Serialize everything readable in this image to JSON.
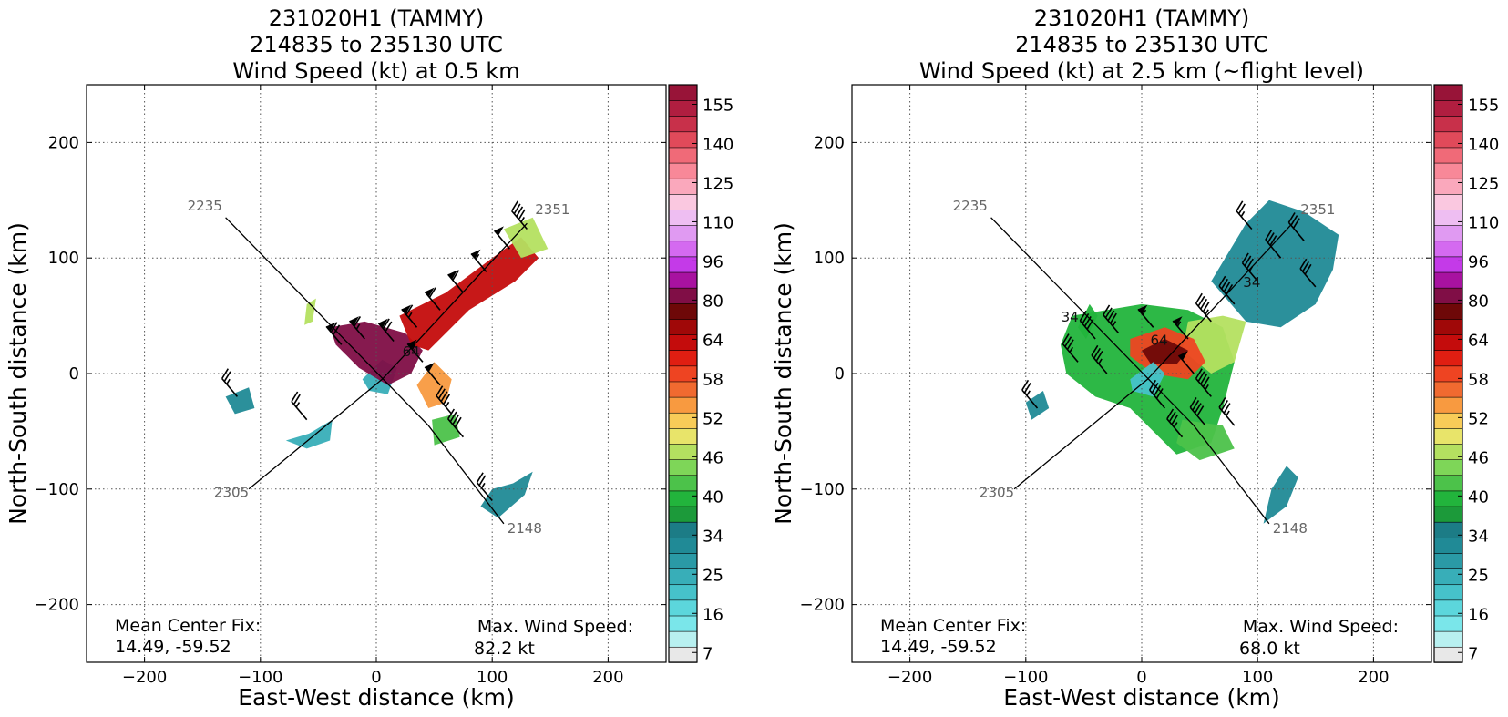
{
  "colorbar": {
    "colors": [
      "#e8e8e8",
      "#b8f0f0",
      "#7ae6ea",
      "#5cd6dc",
      "#46c2ca",
      "#38aeb8",
      "#2a9aa6",
      "#208a96",
      "#1c7c86",
      "#1c9a3a",
      "#22b43c",
      "#4cc24a",
      "#7ed658",
      "#b4e060",
      "#e8e46a",
      "#f8cc58",
      "#f89a40",
      "#f06a30",
      "#ee4422",
      "#e01e12",
      "#c40c0c",
      "#a00808",
      "#6e0808",
      "#800e46",
      "#a812a0",
      "#c43ae8",
      "#d46af0",
      "#e09af2",
      "#eebef2",
      "#fac8e0",
      "#faa8bc",
      "#f88898",
      "#f06a78",
      "#e04a5a",
      "#c8304a",
      "#b01e40",
      "#981438"
    ],
    "tick_labels": [
      "7",
      "16",
      "25",
      "34",
      "40",
      "46",
      "52",
      "58",
      "64",
      "80",
      "96",
      "110",
      "125",
      "140",
      "155"
    ]
  },
  "panels": [
    {
      "title_lines": [
        "231020H1 (TAMMY)",
        "214835 to 235130 UTC",
        "Wind Speed (kt) at 0.5 km"
      ],
      "xlabel": "East-West distance (km)",
      "ylabel": "North-South distance (km)",
      "mean_center_label": "Mean Center Fix:",
      "mean_center_value": "14.49, -59.52",
      "max_wind_label": "Max. Wind Speed:",
      "max_wind_value": "82.2 kt",
      "contour_labels": [
        "64"
      ]
    },
    {
      "title_lines": [
        "231020H1 (TAMMY)",
        "214835 to 235130 UTC",
        "Wind Speed (kt) at 2.5 km (~flight level)"
      ],
      "xlabel": "East-West distance (km)",
      "ylabel": "North-South distance (km)",
      "mean_center_label": "Mean Center Fix:",
      "mean_center_value": "14.49, -59.52",
      "max_wind_label": "Max. Wind Speed:",
      "max_wind_value": "68.0 kt",
      "contour_labels": [
        "34",
        "34",
        "64"
      ]
    }
  ],
  "chart_data": [
    {
      "type": "heatmap",
      "title": "231020H1 (TAMMY) 214835 to 235130 UTC Wind Speed (kt) at 0.5 km",
      "xlabel": "East-West distance (km)",
      "ylabel": "North-South distance (km)",
      "xlim": [
        -250,
        250
      ],
      "ylim": [
        -250,
        250
      ],
      "xticks": [
        -200,
        -100,
        0,
        100,
        200
      ],
      "yticks": [
        -200,
        -100,
        0,
        100,
        200
      ],
      "grid": true,
      "max_wind_kt": 82.2,
      "mean_center_fix": [
        14.49,
        -59.52
      ],
      "flight_track": [
        {
          "label": "2235",
          "label_at": [
            -148,
            141
          ],
          "points": [
            [
              -130,
              135
            ],
            [
              45,
              -45
            ],
            [
              110,
              -130
            ]
          ]
        },
        {
          "label": "2148",
          "label_at": [
            128,
            -138
          ],
          "points": [
            [
              110,
              -130
            ]
          ]
        },
        {
          "label": "2305",
          "label_at": [
            -125,
            -107
          ],
          "points": [
            [
              -110,
              -100
            ],
            [
              5,
              -5
            ],
            [
              130,
              130
            ]
          ]
        },
        {
          "label": "2351",
          "label_at": [
            152,
            138
          ],
          "points": [
            [
              130,
              130
            ]
          ]
        }
      ],
      "wind_regions": [
        {
          "kt": 20,
          "points": [
            [
              -58,
              -52
            ],
            [
              -38,
              -40
            ],
            [
              -40,
              -58
            ],
            [
              -60,
              -65
            ],
            [
              -78,
              -58
            ]
          ]
        },
        {
          "kt": 22,
          "points": [
            [
              -12,
              -5
            ],
            [
              5,
              12
            ],
            [
              18,
              5
            ],
            [
              10,
              -18
            ],
            [
              -6,
              -15
            ]
          ]
        },
        {
          "kt": 72,
          "points": [
            [
              -40,
              40
            ],
            [
              -10,
              45
            ],
            [
              25,
              35
            ],
            [
              40,
              20
            ],
            [
              30,
              0
            ],
            [
              10,
              -10
            ],
            [
              -15,
              5
            ],
            [
              -35,
              25
            ]
          ]
        },
        {
          "kt": 60,
          "points": [
            [
              20,
              50
            ],
            [
              60,
              70
            ],
            [
              100,
              100
            ],
            [
              125,
              118
            ],
            [
              140,
              100
            ],
            [
              120,
              80
            ],
            [
              80,
              55
            ],
            [
              45,
              20
            ],
            [
              30,
              25
            ]
          ]
        },
        {
          "kt": 50,
          "points": [
            [
              50,
              10
            ],
            [
              65,
              -5
            ],
            [
              60,
              -25
            ],
            [
              45,
              -30
            ],
            [
              35,
              -10
            ]
          ]
        },
        {
          "kt": 40,
          "points": [
            [
              48,
              -40
            ],
            [
              68,
              -35
            ],
            [
              72,
              -55
            ],
            [
              50,
              -62
            ]
          ]
        },
        {
          "kt": 45,
          "points": [
            [
              110,
              125
            ],
            [
              135,
              135
            ],
            [
              148,
              108
            ],
            [
              125,
              100
            ]
          ]
        },
        {
          "kt": 27,
          "points": [
            [
              90,
              -115
            ],
            [
              105,
              -125
            ],
            [
              128,
              -105
            ],
            [
              135,
              -85
            ],
            [
              118,
              -95
            ],
            [
              100,
              -100
            ]
          ]
        },
        {
          "kt": 27,
          "points": [
            [
              -130,
              -20
            ],
            [
              -110,
              -12
            ],
            [
              -105,
              -30
            ],
            [
              -122,
              -35
            ]
          ]
        },
        {
          "kt": 45,
          "points": [
            [
              -60,
              60
            ],
            [
              -52,
              65
            ],
            [
              -55,
              45
            ],
            [
              -62,
              42
            ]
          ]
        }
      ],
      "barbs": [
        {
          "at": [
            -30,
            25
          ],
          "kt": 70
        },
        {
          "at": [
            -10,
            30
          ],
          "kt": 65
        },
        {
          "at": [
            15,
            28
          ],
          "kt": 70
        },
        {
          "at": [
            35,
            40
          ],
          "kt": 65
        },
        {
          "at": [
            55,
            55
          ],
          "kt": 60
        },
        {
          "at": [
            75,
            70
          ],
          "kt": 60
        },
        {
          "at": [
            95,
            88
          ],
          "kt": 55
        },
        {
          "at": [
            115,
            108
          ],
          "kt": 50
        },
        {
          "at": [
            130,
            125
          ],
          "kt": 45
        },
        {
          "at": [
            40,
            10
          ],
          "kt": 55
        },
        {
          "at": [
            55,
            -10
          ],
          "kt": 50
        },
        {
          "at": [
            65,
            -35
          ],
          "kt": 45
        },
        {
          "at": [
            75,
            -55
          ],
          "kt": 40
        },
        {
          "at": [
            -120,
            -20
          ],
          "kt": 25
        },
        {
          "at": [
            -60,
            -40
          ],
          "kt": 25
        },
        {
          "at": [
            100,
            -110
          ],
          "kt": 25
        }
      ]
    },
    {
      "type": "heatmap",
      "title": "231020H1 (TAMMY) 214835 to 235130 UTC Wind Speed (kt) at 2.5 km (~flight level)",
      "xlabel": "East-West distance (km)",
      "ylabel": "North-South distance (km)",
      "xlim": [
        -250,
        250
      ],
      "ylim": [
        -250,
        250
      ],
      "xticks": [
        -200,
        -100,
        0,
        100,
        200
      ],
      "yticks": [
        -200,
        -100,
        0,
        100,
        200
      ],
      "grid": true,
      "max_wind_kt": 68.0,
      "mean_center_fix": [
        14.49,
        -59.52
      ],
      "flight_track": [
        {
          "label": "2235",
          "label_at": [
            -148,
            141
          ],
          "points": [
            [
              -130,
              135
            ],
            [
              45,
              -45
            ],
            [
              110,
              -130
            ]
          ]
        },
        {
          "label": "2148",
          "label_at": [
            128,
            -138
          ],
          "points": [
            [
              110,
              -130
            ]
          ]
        },
        {
          "label": "2305",
          "label_at": [
            -125,
            -107
          ],
          "points": [
            [
              -110,
              -100
            ],
            [
              5,
              -5
            ],
            [
              130,
              130
            ]
          ]
        },
        {
          "label": "2351",
          "label_at": [
            152,
            138
          ],
          "points": [
            [
              130,
              130
            ]
          ]
        }
      ],
      "wind_regions": [
        {
          "kt": 36,
          "points": [
            [
              -60,
              50
            ],
            [
              -30,
              55
            ],
            [
              0,
              60
            ],
            [
              40,
              55
            ],
            [
              70,
              40
            ],
            [
              80,
              10
            ],
            [
              70,
              -30
            ],
            [
              60,
              -60
            ],
            [
              30,
              -70
            ],
            [
              10,
              -50
            ],
            [
              -10,
              -30
            ],
            [
              -40,
              -20
            ],
            [
              -65,
              0
            ],
            [
              -70,
              25
            ]
          ]
        },
        {
          "kt": 28,
          "points": [
            [
              60,
              80
            ],
            [
              90,
              130
            ],
            [
              110,
              150
            ],
            [
              140,
              140
            ],
            [
              170,
              120
            ],
            [
              165,
              90
            ],
            [
              150,
              60
            ],
            [
              120,
              40
            ],
            [
              90,
              45
            ]
          ]
        },
        {
          "kt": 45,
          "points": [
            [
              40,
              45
            ],
            [
              70,
              50
            ],
            [
              90,
              45
            ],
            [
              80,
              10
            ],
            [
              60,
              0
            ],
            [
              35,
              20
            ]
          ]
        },
        {
          "kt": 55,
          "points": [
            [
              -10,
              30
            ],
            [
              20,
              40
            ],
            [
              45,
              30
            ],
            [
              55,
              10
            ],
            [
              40,
              -5
            ],
            [
              10,
              0
            ],
            [
              -10,
              15
            ]
          ]
        },
        {
          "kt": 64,
          "points": [
            [
              0,
              20
            ],
            [
              20,
              30
            ],
            [
              40,
              20
            ],
            [
              30,
              8
            ],
            [
              8,
              8
            ]
          ]
        },
        {
          "kt": 18,
          "points": [
            [
              -10,
              -5
            ],
            [
              10,
              10
            ],
            [
              20,
              0
            ],
            [
              10,
              -20
            ],
            [
              -8,
              -15
            ]
          ]
        },
        {
          "kt": 27,
          "points": [
            [
              105,
              -130
            ],
            [
              112,
              -100
            ],
            [
              125,
              -80
            ],
            [
              135,
              -90
            ],
            [
              125,
              -115
            ]
          ]
        },
        {
          "kt": 38,
          "points": [
            [
              -55,
              40
            ],
            [
              -45,
              60
            ],
            [
              -38,
              50
            ],
            [
              -48,
              30
            ]
          ]
        },
        {
          "kt": 27,
          "points": [
            [
              -100,
              -25
            ],
            [
              -85,
              -15
            ],
            [
              -80,
              -30
            ],
            [
              -95,
              -40
            ]
          ]
        },
        {
          "kt": 40,
          "points": [
            [
              35,
              -40
            ],
            [
              70,
              -45
            ],
            [
              80,
              -65
            ],
            [
              50,
              -75
            ],
            [
              30,
              -60
            ]
          ]
        }
      ],
      "barbs": [
        {
          "at": [
            -40,
            30
          ],
          "kt": 40
        },
        {
          "at": [
            -20,
            35
          ],
          "kt": 45
        },
        {
          "at": [
            10,
            40
          ],
          "kt": 55
        },
        {
          "at": [
            40,
            30
          ],
          "kt": 55
        },
        {
          "at": [
            60,
            45
          ],
          "kt": 45
        },
        {
          "at": [
            80,
            60
          ],
          "kt": 40
        },
        {
          "at": [
            100,
            80
          ],
          "kt": 35
        },
        {
          "at": [
            120,
            100
          ],
          "kt": 30
        },
        {
          "at": [
            140,
            115
          ],
          "kt": 30
        },
        {
          "at": [
            95,
            125
          ],
          "kt": 25
        },
        {
          "at": [
            150,
            75
          ],
          "kt": 30
        },
        {
          "at": [
            45,
            0
          ],
          "kt": 50
        },
        {
          "at": [
            60,
            -20
          ],
          "kt": 45
        },
        {
          "at": [
            55,
            -45
          ],
          "kt": 40
        },
        {
          "at": [
            35,
            -55
          ],
          "kt": 35
        },
        {
          "at": [
            -30,
            0
          ],
          "kt": 35
        },
        {
          "at": [
            -55,
            10
          ],
          "kt": 35
        },
        {
          "at": [
            -90,
            -30
          ],
          "kt": 25
        },
        {
          "at": [
            80,
            -45
          ],
          "kt": 35
        },
        {
          "at": [
            20,
            -30
          ],
          "kt": 40
        }
      ]
    }
  ]
}
